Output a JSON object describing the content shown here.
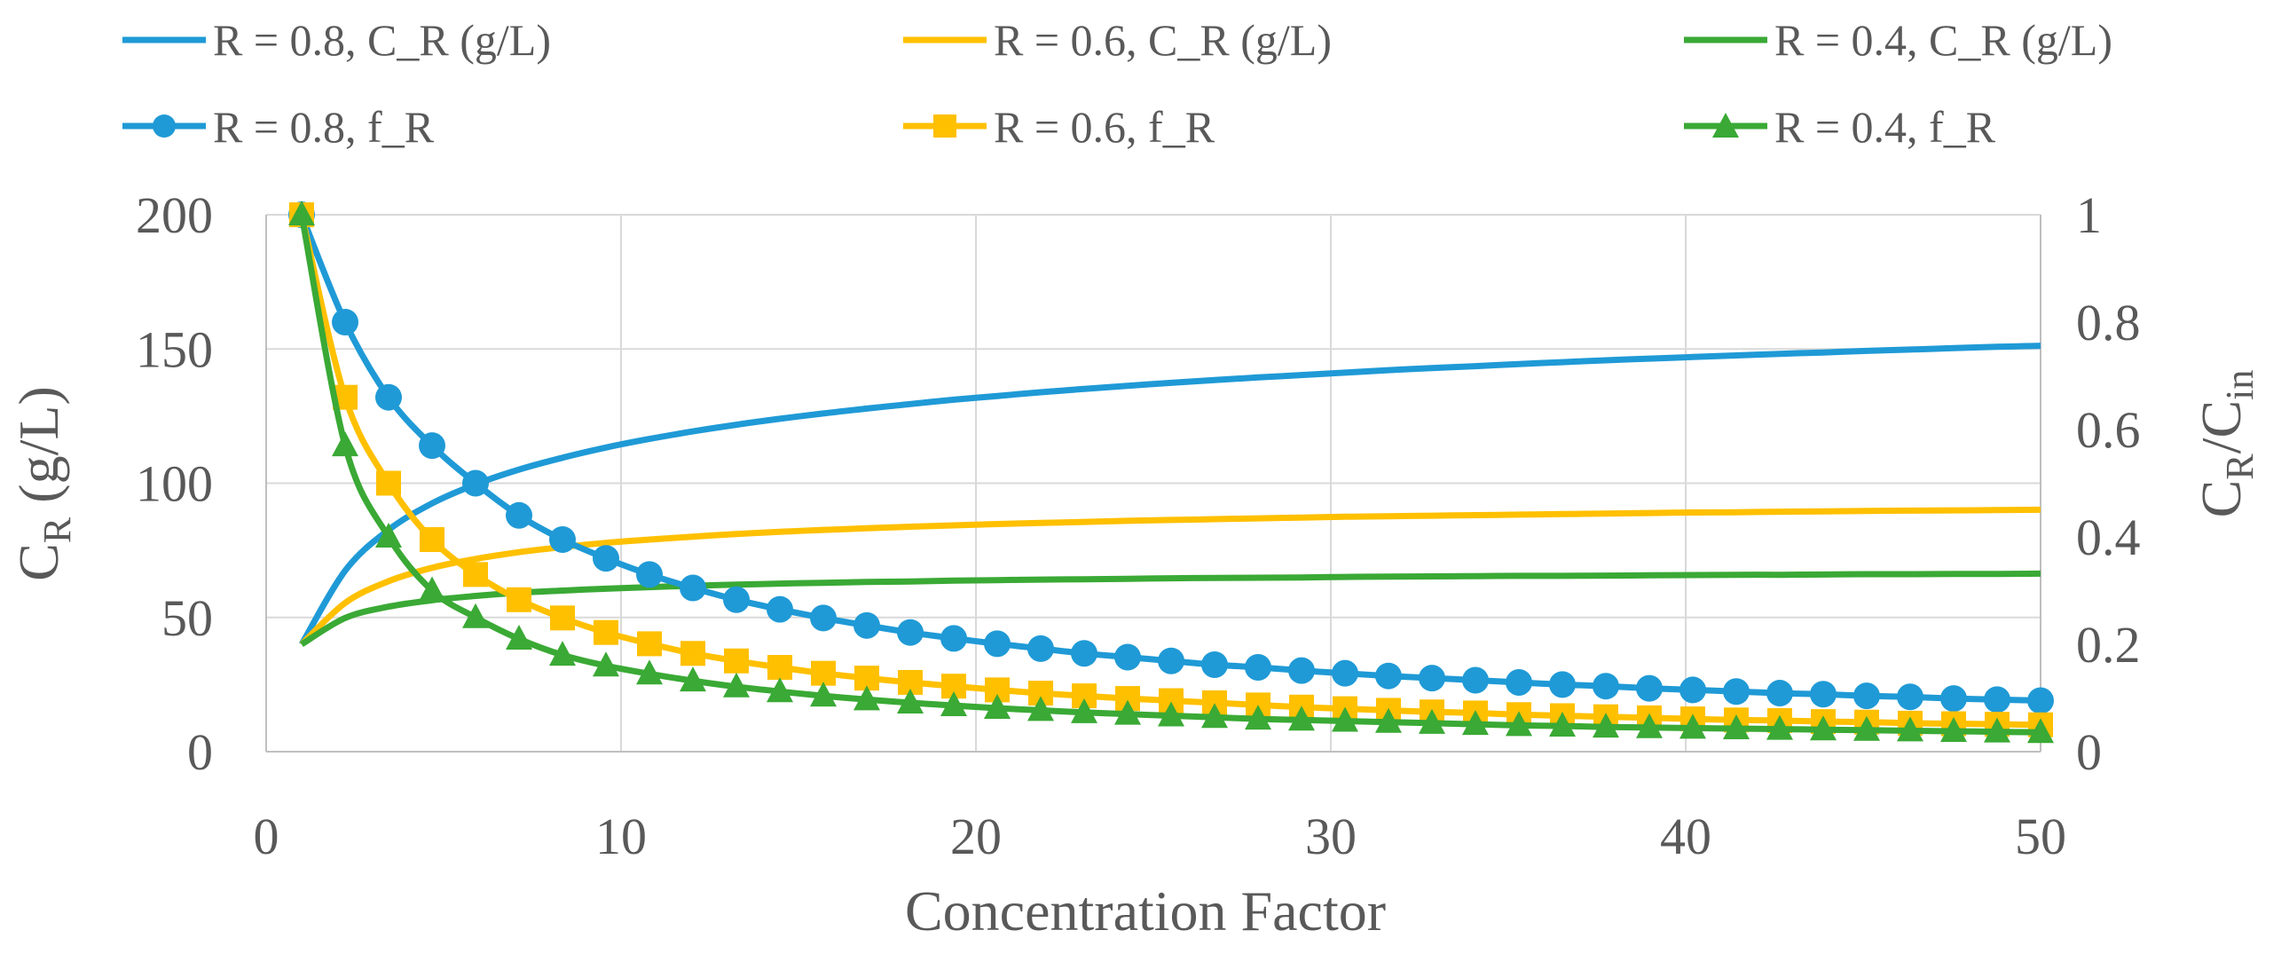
{
  "chart_data": {
    "type": "line",
    "title": "",
    "xlabel": "Concentration Factor",
    "ylabel_left": {
      "main": "C",
      "sub": "R",
      "rest": " (g/L)"
    },
    "ylabel_right": {
      "a": "C",
      "a_sub": "R",
      "b": "/C",
      "b_sub": "in"
    },
    "xlim": [
      0,
      50
    ],
    "ylim_left": [
      0,
      200
    ],
    "ylim_right": [
      0,
      1
    ],
    "x_ticks": [
      "0",
      "10",
      "20",
      "30",
      "40",
      "50"
    ],
    "y_left_ticks": [
      "0",
      "50",
      "100",
      "150",
      "200"
    ],
    "y_right_ticks": [
      "0",
      "0.2",
      "0.4",
      "0.6",
      "0.8",
      "1"
    ],
    "grid": true,
    "legend_position": "top",
    "x": [
      1,
      2.225,
      3.45,
      4.675,
      5.9,
      7.125,
      8.35,
      9.575,
      10.8,
      12.025,
      13.25,
      14.475,
      15.7,
      16.925,
      18.15,
      19.375,
      20.6,
      21.825,
      23.05,
      24.275,
      25.5,
      26.725,
      27.95,
      29.175,
      30.4,
      31.625,
      32.85,
      34.075,
      35.3,
      36.525,
      37.75,
      38.975,
      40.2,
      41.425,
      42.65,
      43.875,
      45.1,
      46.325,
      47.55,
      48.775,
      50
    ],
    "series": [
      {
        "name": "R = 0.8, C_R (g/L)",
        "axis": "left",
        "marker": "none",
        "color": "#1f9ad6",
        "values": [
          40,
          67.4,
          82.6,
          92.5,
          99.6,
          105.1,
          109.5,
          113.3,
          116.5,
          119.3,
          121.8,
          124.0,
          126.0,
          127.8,
          129.5,
          131.1,
          132.5,
          133.9,
          135.1,
          136.3,
          137.4,
          138.4,
          139.4,
          140.3,
          141.2,
          142.1,
          142.9,
          143.6,
          144.4,
          145.1,
          145.8,
          146.4,
          147.0,
          147.6,
          148.2,
          148.7,
          149.3,
          149.8,
          150.3,
          150.8,
          151.2
        ]
      },
      {
        "name": "R = 0.6, C_R (g/L)",
        "axis": "left",
        "marker": "none",
        "color": "#ffc000",
        "values": [
          40,
          55.4,
          63.5,
          68.5,
          71.8,
          74.3,
          76.2,
          77.8,
          79.0,
          80.1,
          81.1,
          81.9,
          82.6,
          83.2,
          83.8,
          84.3,
          84.8,
          85.2,
          85.6,
          86.0,
          86.3,
          86.6,
          86.9,
          87.2,
          87.5,
          87.7,
          87.9,
          88.1,
          88.3,
          88.5,
          88.7,
          88.9,
          89.1,
          89.2,
          89.4,
          89.5,
          89.7,
          89.8,
          89.9,
          90.0,
          90.1
        ]
      },
      {
        "name": "R = 0.4, C_R (g/L)",
        "axis": "left",
        "marker": "none",
        "color": "#3aa935",
        "values": [
          40,
          49.8,
          54.0,
          56.4,
          58.0,
          59.2,
          60.0,
          60.7,
          61.3,
          61.8,
          62.2,
          62.6,
          62.9,
          63.2,
          63.4,
          63.7,
          63.9,
          64.1,
          64.2,
          64.4,
          64.6,
          64.7,
          64.8,
          64.9,
          65.1,
          65.2,
          65.3,
          65.4,
          65.5,
          65.5,
          65.6,
          65.7,
          65.8,
          65.9,
          65.9,
          66.0,
          66.1,
          66.1,
          66.2,
          66.2,
          66.3
        ]
      },
      {
        "name": "R = 0.8, f_R",
        "axis": "right",
        "marker": "circle",
        "color": "#1f9ad6",
        "values": [
          1,
          0.8,
          0.66,
          0.57,
          0.5,
          0.44,
          0.395,
          0.36,
          0.33,
          0.305,
          0.283,
          0.265,
          0.249,
          0.235,
          0.222,
          0.211,
          0.201,
          0.192,
          0.183,
          0.176,
          0.169,
          0.162,
          0.157,
          0.151,
          0.146,
          0.141,
          0.137,
          0.133,
          0.129,
          0.125,
          0.122,
          0.118,
          0.115,
          0.112,
          0.109,
          0.107,
          0.104,
          0.102,
          0.099,
          0.097,
          0.095
        ]
      },
      {
        "name": "R = 0.6, f_R",
        "axis": "right",
        "marker": "square",
        "color": "#ffc000",
        "values": [
          1,
          0.66,
          0.5,
          0.395,
          0.33,
          0.283,
          0.249,
          0.222,
          0.201,
          0.183,
          0.169,
          0.157,
          0.146,
          0.137,
          0.129,
          0.122,
          0.115,
          0.109,
          0.104,
          0.099,
          0.095,
          0.091,
          0.087,
          0.083,
          0.08,
          0.077,
          0.074,
          0.072,
          0.069,
          0.067,
          0.065,
          0.063,
          0.061,
          0.059,
          0.058,
          0.056,
          0.055,
          0.053,
          0.052,
          0.051,
          0.05
        ]
      },
      {
        "name": "R = 0.4, f_R",
        "axis": "right",
        "marker": "triangle",
        "color": "#3aa935",
        "values": [
          1,
          0.57,
          0.4,
          0.3,
          0.25,
          0.21,
          0.18,
          0.16,
          0.145,
          0.132,
          0.121,
          0.112,
          0.104,
          0.097,
          0.091,
          0.086,
          0.081,
          0.077,
          0.073,
          0.07,
          0.067,
          0.064,
          0.061,
          0.059,
          0.057,
          0.055,
          0.053,
          0.051,
          0.049,
          0.048,
          0.046,
          0.045,
          0.044,
          0.043,
          0.042,
          0.041,
          0.04,
          0.039,
          0.038,
          0.037,
          0.036
        ]
      }
    ]
  }
}
